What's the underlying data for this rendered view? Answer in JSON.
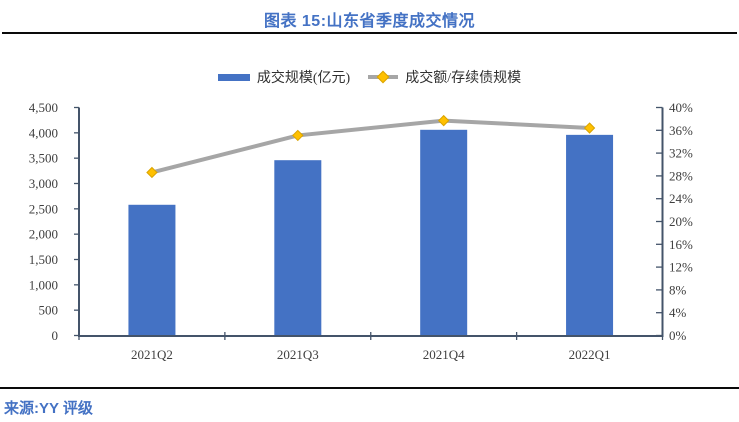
{
  "header": {
    "title": "图表 15:山东省季度成交情况"
  },
  "footer": {
    "source": "来源:YY 评级"
  },
  "colors": {
    "accent_blue": "#4472C4",
    "bar_fill": "#4472C4",
    "line_gray": "#A6A6A6",
    "marker_gold": "#FFC000",
    "marker_gold_edge": "#D9A300",
    "axis_line": "#44546A",
    "tick_label": "#3F3F3F",
    "divider": "#0A0A0A"
  },
  "chart_data": {
    "type": "bar",
    "subtype": "combo-bar-line-dual-axis",
    "title": "图表 15:山东省季度成交情况",
    "categories": [
      "2021Q2",
      "2021Q3",
      "2021Q4",
      "2022Q1"
    ],
    "series": [
      {
        "name": "成交规模(亿元)",
        "type": "bar",
        "axis": "left",
        "values": [
          2580,
          3460,
          4060,
          3960
        ]
      },
      {
        "name": "成交额/存续债规模",
        "type": "line",
        "axis": "right",
        "unit": "%",
        "values": [
          28.6,
          35.1,
          37.7,
          36.4
        ]
      }
    ],
    "left_axis": {
      "min": 0,
      "max": 4500,
      "step": 500,
      "tick_labels": [
        "0",
        "500",
        "1,000",
        "1,500",
        "2,000",
        "2,500",
        "3,000",
        "3,500",
        "4,000",
        "4,500"
      ]
    },
    "right_axis": {
      "min": 0,
      "max": 40,
      "step": 4,
      "unit": "%",
      "tick_labels": [
        "0%",
        "4%",
        "8%",
        "12%",
        "16%",
        "20%",
        "24%",
        "28%",
        "32%",
        "36%",
        "40%"
      ]
    },
    "legend_position": "top",
    "grid": false
  }
}
